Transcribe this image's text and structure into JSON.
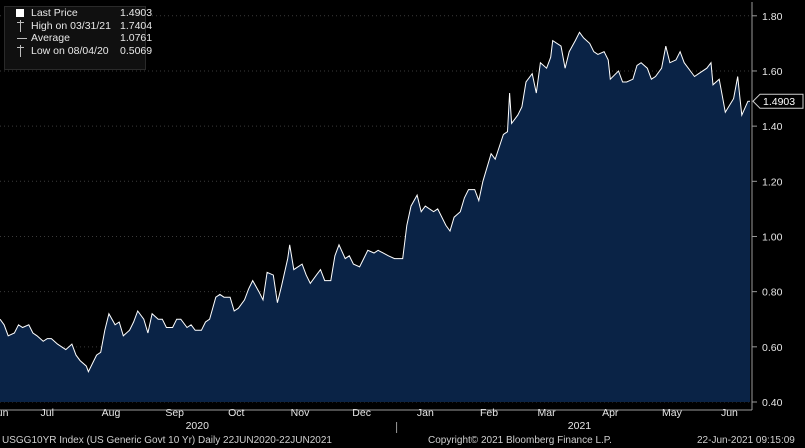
{
  "legend": {
    "last_price_label": "Last Price",
    "last_price_value": "1.4903",
    "high_label": "High on 03/31/21",
    "high_value": "1.7404",
    "average_label": "Average",
    "average_value": "1.0761",
    "low_label": "Low on 08/04/20",
    "low_value": "0.5069"
  },
  "footer": {
    "index_label": "USGG10YR Index (US Generic Govt 10 Yr)  Daily 22JUN2020-22JUN2021",
    "copyright": "Copyright© 2021 Bloomberg Finance L.P.",
    "timestamp": "22-Jun-2021 09:15:09"
  },
  "colors": {
    "background": "#000000",
    "area_fill": "#0a2346",
    "line": "#ffffff",
    "grid": "#3a3a3a",
    "text": "#e6e6e6"
  },
  "chart_data": {
    "type": "area",
    "x_start": "2020-06-22",
    "x_end": "2021-06-22",
    "months": [
      {
        "label": "Jun",
        "date": "2020-06-22"
      },
      {
        "label": "Jul",
        "date": "2020-07-15"
      },
      {
        "label": "Aug",
        "date": "2020-08-15"
      },
      {
        "label": "Sep",
        "date": "2020-09-15"
      },
      {
        "label": "Oct",
        "date": "2020-10-15"
      },
      {
        "label": "Nov",
        "date": "2020-11-15"
      },
      {
        "label": "Dec",
        "date": "2020-12-15"
      },
      {
        "label": "Jan",
        "date": "2021-01-15"
      },
      {
        "label": "Feb",
        "date": "2021-02-15"
      },
      {
        "label": "Mar",
        "date": "2021-03-15"
      },
      {
        "label": "Apr",
        "date": "2021-04-15"
      },
      {
        "label": "May",
        "date": "2021-05-15"
      },
      {
        "label": "Jun",
        "date": "2021-06-12"
      }
    ],
    "years": [
      {
        "label": "2020",
        "date": "2020-09-26"
      },
      {
        "label": "2021",
        "date": "2021-03-31"
      }
    ],
    "year_divider": "2021-01-01",
    "y_ticks": [
      "0.40",
      "0.60",
      "0.80",
      "1.00",
      "1.20",
      "1.40",
      "1.60",
      "1.80"
    ],
    "ylim": [
      0.4,
      1.85
    ],
    "last_value_label": "1.4903",
    "last_value": 1.4903,
    "points": [
      [
        "2020-06-22",
        0.7
      ],
      [
        "2020-06-24",
        0.68
      ],
      [
        "2020-06-26",
        0.64
      ],
      [
        "2020-06-29",
        0.65
      ],
      [
        "2020-07-01",
        0.68
      ],
      [
        "2020-07-03",
        0.67
      ],
      [
        "2020-07-06",
        0.68
      ],
      [
        "2020-07-08",
        0.65
      ],
      [
        "2020-07-10",
        0.64
      ],
      [
        "2020-07-13",
        0.62
      ],
      [
        "2020-07-15",
        0.63
      ],
      [
        "2020-07-17",
        0.63
      ],
      [
        "2020-07-20",
        0.61
      ],
      [
        "2020-07-22",
        0.6
      ],
      [
        "2020-07-24",
        0.59
      ],
      [
        "2020-07-27",
        0.61
      ],
      [
        "2020-07-29",
        0.57
      ],
      [
        "2020-07-31",
        0.55
      ],
      [
        "2020-08-03",
        0.53
      ],
      [
        "2020-08-04",
        0.51
      ],
      [
        "2020-08-06",
        0.54
      ],
      [
        "2020-08-08",
        0.57
      ],
      [
        "2020-08-10",
        0.58
      ],
      [
        "2020-08-12",
        0.66
      ],
      [
        "2020-08-14",
        0.72
      ],
      [
        "2020-08-17",
        0.68
      ],
      [
        "2020-08-19",
        0.69
      ],
      [
        "2020-08-21",
        0.64
      ],
      [
        "2020-08-24",
        0.66
      ],
      [
        "2020-08-26",
        0.69
      ],
      [
        "2020-08-28",
        0.73
      ],
      [
        "2020-08-31",
        0.7
      ],
      [
        "2020-09-02",
        0.65
      ],
      [
        "2020-09-04",
        0.72
      ],
      [
        "2020-09-07",
        0.7
      ],
      [
        "2020-09-09",
        0.7
      ],
      [
        "2020-09-11",
        0.67
      ],
      [
        "2020-09-14",
        0.67
      ],
      [
        "2020-09-16",
        0.7
      ],
      [
        "2020-09-18",
        0.7
      ],
      [
        "2020-09-21",
        0.67
      ],
      [
        "2020-09-23",
        0.68
      ],
      [
        "2020-09-25",
        0.66
      ],
      [
        "2020-09-28",
        0.66
      ],
      [
        "2020-09-30",
        0.69
      ],
      [
        "2020-10-02",
        0.7
      ],
      [
        "2020-10-05",
        0.78
      ],
      [
        "2020-10-07",
        0.79
      ],
      [
        "2020-10-09",
        0.78
      ],
      [
        "2020-10-12",
        0.78
      ],
      [
        "2020-10-14",
        0.73
      ],
      [
        "2020-10-16",
        0.74
      ],
      [
        "2020-10-19",
        0.77
      ],
      [
        "2020-10-21",
        0.81
      ],
      [
        "2020-10-23",
        0.84
      ],
      [
        "2020-10-26",
        0.8
      ],
      [
        "2020-10-28",
        0.77
      ],
      [
        "2020-10-30",
        0.87
      ],
      [
        "2020-11-02",
        0.86
      ],
      [
        "2020-11-04",
        0.76
      ],
      [
        "2020-11-06",
        0.82
      ],
      [
        "2020-11-09",
        0.92
      ],
      [
        "2020-11-10",
        0.97
      ],
      [
        "2020-11-12",
        0.88
      ],
      [
        "2020-11-16",
        0.9
      ],
      [
        "2020-11-18",
        0.86
      ],
      [
        "2020-11-20",
        0.83
      ],
      [
        "2020-11-23",
        0.86
      ],
      [
        "2020-11-25",
        0.88
      ],
      [
        "2020-11-27",
        0.84
      ],
      [
        "2020-11-30",
        0.84
      ],
      [
        "2020-12-02",
        0.93
      ],
      [
        "2020-12-04",
        0.97
      ],
      [
        "2020-12-07",
        0.92
      ],
      [
        "2020-12-09",
        0.93
      ],
      [
        "2020-12-11",
        0.9
      ],
      [
        "2020-12-14",
        0.89
      ],
      [
        "2020-12-16",
        0.92
      ],
      [
        "2020-12-18",
        0.95
      ],
      [
        "2020-12-21",
        0.94
      ],
      [
        "2020-12-23",
        0.95
      ],
      [
        "2020-12-28",
        0.93
      ],
      [
        "2020-12-31",
        0.92
      ],
      [
        "2021-01-04",
        0.92
      ],
      [
        "2021-01-06",
        1.04
      ],
      [
        "2021-01-08",
        1.11
      ],
      [
        "2021-01-11",
        1.15
      ],
      [
        "2021-01-13",
        1.09
      ],
      [
        "2021-01-15",
        1.11
      ],
      [
        "2021-01-19",
        1.09
      ],
      [
        "2021-01-21",
        1.1
      ],
      [
        "2021-01-25",
        1.04
      ],
      [
        "2021-01-27",
        1.02
      ],
      [
        "2021-01-29",
        1.07
      ],
      [
        "2021-02-01",
        1.09
      ],
      [
        "2021-02-03",
        1.14
      ],
      [
        "2021-02-05",
        1.17
      ],
      [
        "2021-02-08",
        1.17
      ],
      [
        "2021-02-10",
        1.13
      ],
      [
        "2021-02-12",
        1.2
      ],
      [
        "2021-02-16",
        1.3
      ],
      [
        "2021-02-18",
        1.28
      ],
      [
        "2021-02-22",
        1.37
      ],
      [
        "2021-02-24",
        1.38
      ],
      [
        "2021-02-25",
        1.52
      ],
      [
        "2021-02-26",
        1.41
      ],
      [
        "2021-03-01",
        1.44
      ],
      [
        "2021-03-03",
        1.47
      ],
      [
        "2021-03-05",
        1.56
      ],
      [
        "2021-03-08",
        1.59
      ],
      [
        "2021-03-10",
        1.52
      ],
      [
        "2021-03-12",
        1.63
      ],
      [
        "2021-03-15",
        1.61
      ],
      [
        "2021-03-17",
        1.65
      ],
      [
        "2021-03-18",
        1.71
      ],
      [
        "2021-03-22",
        1.69
      ],
      [
        "2021-03-24",
        1.61
      ],
      [
        "2021-03-26",
        1.67
      ],
      [
        "2021-03-29",
        1.71
      ],
      [
        "2021-03-31",
        1.74
      ],
      [
        "2021-04-02",
        1.72
      ],
      [
        "2021-04-05",
        1.7
      ],
      [
        "2021-04-07",
        1.67
      ],
      [
        "2021-04-09",
        1.66
      ],
      [
        "2021-04-12",
        1.67
      ],
      [
        "2021-04-14",
        1.64
      ],
      [
        "2021-04-15",
        1.57
      ],
      [
        "2021-04-19",
        1.6
      ],
      [
        "2021-04-21",
        1.56
      ],
      [
        "2021-04-23",
        1.56
      ],
      [
        "2021-04-26",
        1.57
      ],
      [
        "2021-04-28",
        1.62
      ],
      [
        "2021-04-30",
        1.63
      ],
      [
        "2021-05-03",
        1.61
      ],
      [
        "2021-05-05",
        1.57
      ],
      [
        "2021-05-07",
        1.58
      ],
      [
        "2021-05-10",
        1.61
      ],
      [
        "2021-05-12",
        1.69
      ],
      [
        "2021-05-14",
        1.63
      ],
      [
        "2021-05-17",
        1.64
      ],
      [
        "2021-05-19",
        1.67
      ],
      [
        "2021-05-21",
        1.63
      ],
      [
        "2021-05-24",
        1.6
      ],
      [
        "2021-05-26",
        1.58
      ],
      [
        "2021-05-28",
        1.59
      ],
      [
        "2021-06-01",
        1.61
      ],
      [
        "2021-06-03",
        1.63
      ],
      [
        "2021-06-04",
        1.55
      ],
      [
        "2021-06-07",
        1.57
      ],
      [
        "2021-06-09",
        1.49
      ],
      [
        "2021-06-10",
        1.45
      ],
      [
        "2021-06-14",
        1.5
      ],
      [
        "2021-06-16",
        1.58
      ],
      [
        "2021-06-17",
        1.51
      ],
      [
        "2021-06-18",
        1.44
      ],
      [
        "2021-06-21",
        1.49
      ],
      [
        "2021-06-22",
        1.4903
      ]
    ]
  }
}
